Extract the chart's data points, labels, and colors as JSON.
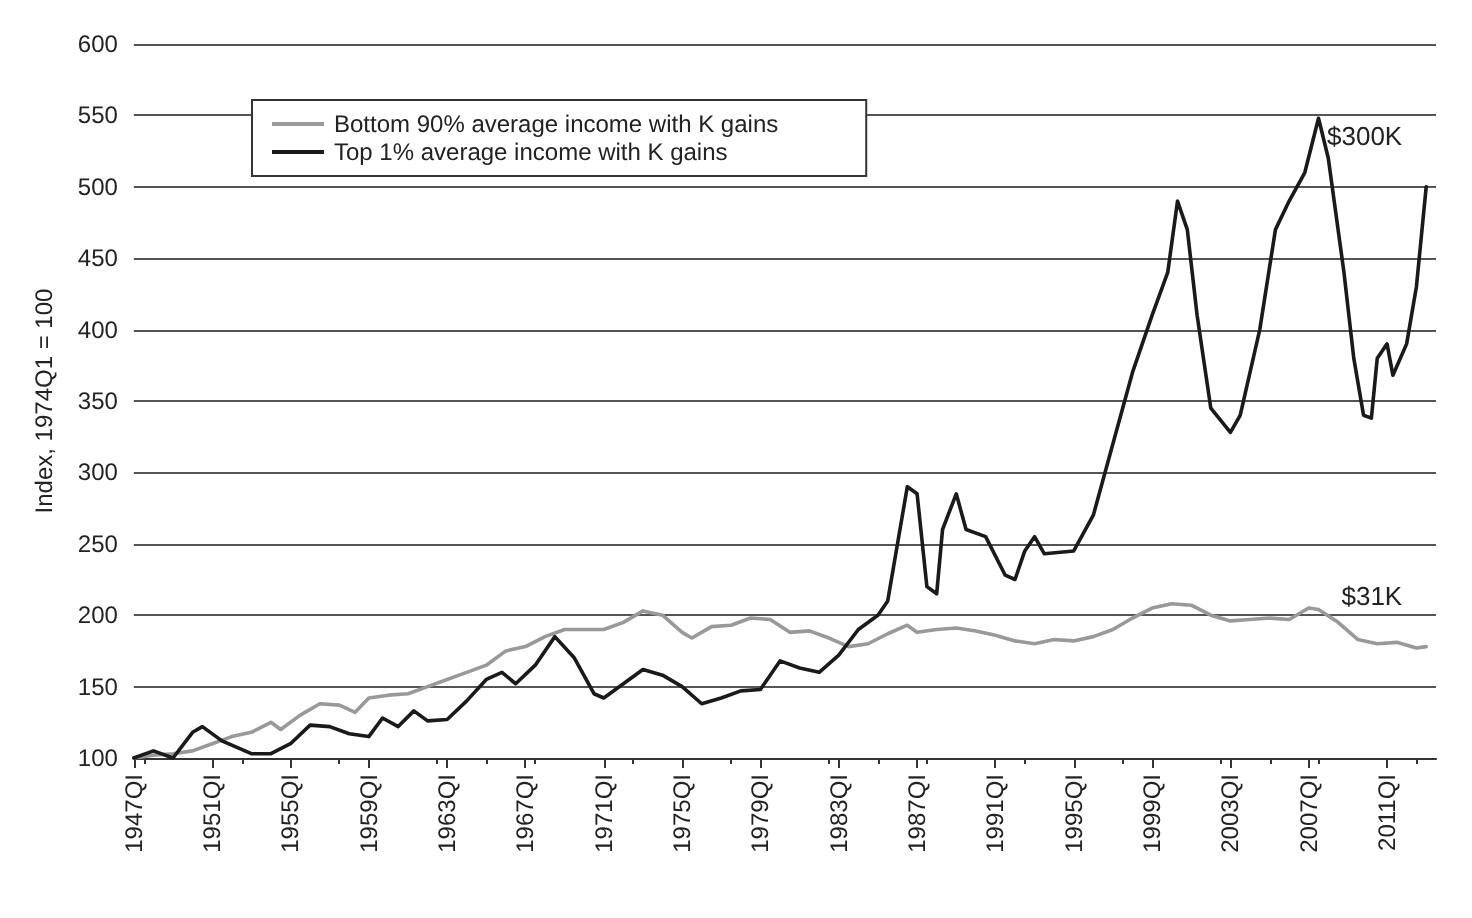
{
  "chart_data": {
    "type": "line",
    "ylabel": "Index, 1974Q1 = 100",
    "xlim": [
      1947,
      2013.5
    ],
    "xticks": [
      {
        "value": 1947,
        "label": "1947QI"
      },
      {
        "value": 1951,
        "label": "1951QI"
      },
      {
        "value": 1955,
        "label": "1955QI"
      },
      {
        "value": 1959,
        "label": "1959QI"
      },
      {
        "value": 1963,
        "label": "1963QI"
      },
      {
        "value": 1967,
        "label": "1967QI"
      },
      {
        "value": 1971,
        "label": "1971QI"
      },
      {
        "value": 1975,
        "label": "1975QI"
      },
      {
        "value": 1979,
        "label": "1979QI"
      },
      {
        "value": 1983,
        "label": "1983QI"
      },
      {
        "value": 1987,
        "label": "1987QI"
      },
      {
        "value": 1991,
        "label": "1991QI"
      },
      {
        "value": 1995,
        "label": "1995QI"
      },
      {
        "value": 1999,
        "label": "1999QI"
      },
      {
        "value": 2003,
        "label": "2003QI"
      },
      {
        "value": 2007,
        "label": "2007QI"
      },
      {
        "value": 2011,
        "label": "2011QI"
      }
    ],
    "ylim": [
      100,
      600
    ],
    "yticks": [
      100,
      150,
      200,
      250,
      300,
      350,
      400,
      450,
      500,
      550,
      600
    ],
    "grid": "y",
    "legend": "top left",
    "marker": "none",
    "line_style": "solid",
    "series": [
      {
        "name": "Bottom 90% average income with K gains",
        "color": "#999999",
        "x": [
          1947,
          1948,
          1949,
          1950,
          1951,
          1952,
          1953,
          1954,
          1954.5,
          1955.5,
          1956.5,
          1957.5,
          1958.3,
          1959,
          1960,
          1961,
          1962,
          1963,
          1964,
          1965,
          1966,
          1967,
          1968,
          1969,
          1970,
          1971,
          1972,
          1973,
          1974,
          1975,
          1975.5,
          1976.5,
          1977.5,
          1978.5,
          1979.5,
          1980.5,
          1981.5,
          1982.5,
          1983.5,
          1984.5,
          1985.5,
          1986.5,
          1987,
          1988,
          1989,
          1990,
          1991,
          1992,
          1993,
          1994,
          1995,
          1996,
          1997,
          1998,
          1999,
          2000,
          2001,
          2002,
          2003,
          2004,
          2005,
          2006,
          2007,
          2007.5,
          2008.5,
          2009.5,
          2010.5,
          2011.5,
          2012.5,
          2013
        ],
        "values": [
          100,
          102,
          103,
          105,
          110,
          115,
          118,
          125,
          120,
          130,
          138,
          137,
          132,
          142,
          144,
          145,
          150,
          155,
          160,
          165,
          175,
          178,
          185,
          190,
          190,
          190,
          195,
          203,
          200,
          188,
          184,
          192,
          193,
          198,
          197,
          188,
          189,
          184,
          178,
          180,
          187,
          193,
          188,
          190,
          191,
          189,
          186,
          182,
          180,
          183,
          182,
          185,
          190,
          198,
          205,
          208,
          207,
          200,
          196,
          197,
          198,
          197,
          205,
          204,
          195,
          183,
          180,
          181,
          177,
          178
        ]
      },
      {
        "name": "Top 1% average income with K gains",
        "color": "#1a1a1a",
        "x": [
          1947,
          1948,
          1949,
          1950,
          1950.5,
          1951.5,
          1953,
          1954,
          1955,
          1956,
          1957,
          1958,
          1959,
          1959.7,
          1960.5,
          1961.3,
          1962,
          1963,
          1964,
          1965,
          1965.8,
          1966.5,
          1967.5,
          1968.5,
          1969.5,
          1970.5,
          1971,
          1972,
          1973,
          1974,
          1975,
          1976,
          1977,
          1978,
          1979,
          1980,
          1981,
          1982,
          1983,
          1984,
          1985,
          1985.5,
          1986,
          1986.5,
          1987,
          1987.5,
          1988,
          1988.3,
          1989,
          1989.5,
          1990.5,
          1991.5,
          1992,
          1992.5,
          1993,
          1993.5,
          1995,
          1996,
          1997,
          1998,
          1999,
          1999.8,
          2000.3,
          2000.8,
          2001.3,
          2002,
          2003,
          2003.5,
          2004.5,
          2005.3,
          2006,
          2006.8,
          2007.5,
          2008,
          2008.8,
          2009.3,
          2009.8,
          2010.2,
          2010.5,
          2011,
          2011.3,
          2012,
          2012.5,
          2013
        ],
        "values": [
          100,
          105,
          100,
          118,
          122,
          112,
          103,
          103,
          110,
          123,
          122,
          117,
          115,
          128,
          122,
          133,
          126,
          127,
          140,
          155,
          160,
          152,
          165,
          185,
          170,
          145,
          142,
          152,
          162,
          158,
          150,
          138,
          142,
          147,
          148,
          168,
          163,
          160,
          172,
          190,
          200,
          210,
          250,
          290,
          285,
          220,
          215,
          260,
          285,
          260,
          255,
          228,
          225,
          245,
          255,
          243,
          245,
          270,
          320,
          370,
          410,
          440,
          490,
          470,
          410,
          345,
          328,
          340,
          400,
          470,
          490,
          510,
          548,
          520,
          440,
          380,
          340,
          338,
          380,
          390,
          368,
          390,
          430,
          500
        ]
      }
    ],
    "annotations": [
      {
        "text": "$300K",
        "x": 2013,
        "y": 500
      },
      {
        "text": "$31K",
        "x": 2013,
        "y": 178
      }
    ]
  }
}
